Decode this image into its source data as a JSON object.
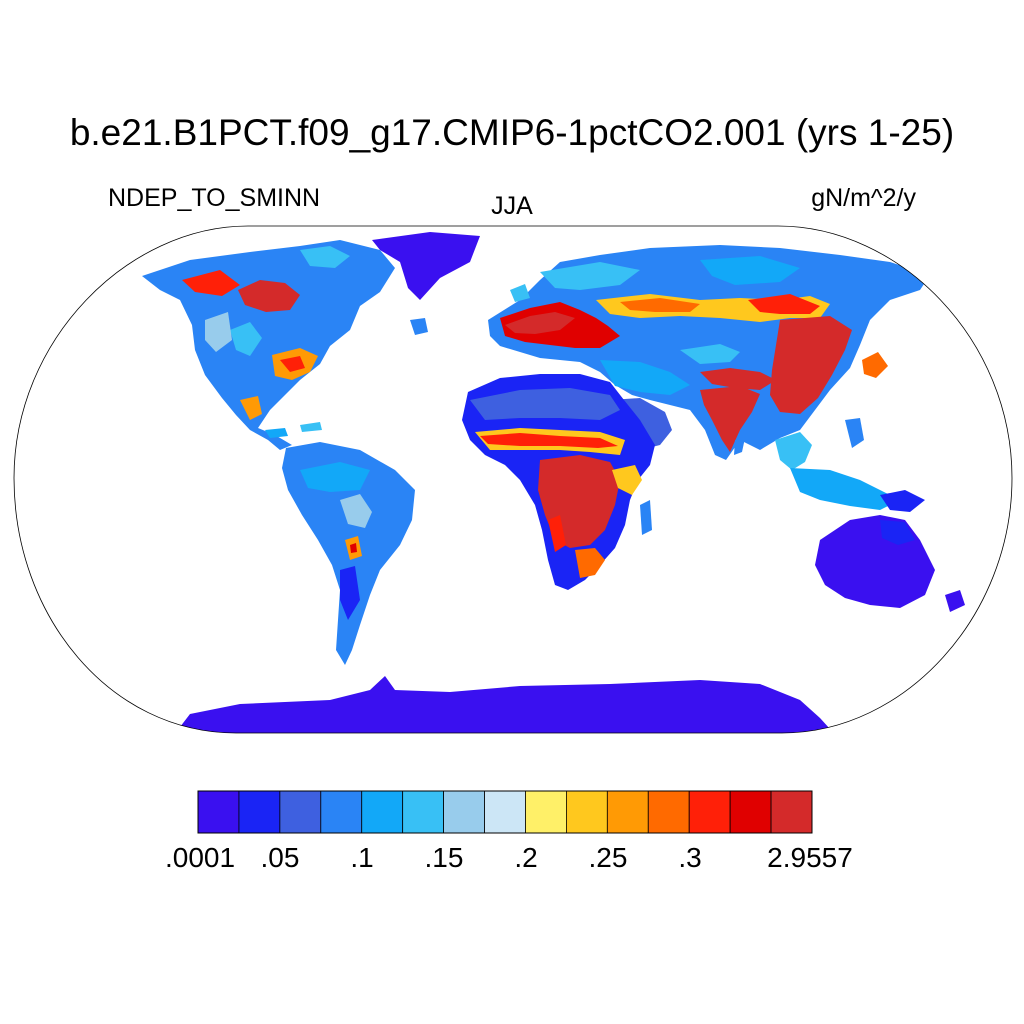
{
  "title": "b.e21.B1PCT.f09_g17.CMIP6-1pctCO2.001 (yrs 1-25)",
  "left_subtitle": "NDEP_TO_SMINN",
  "center_subtitle": "JJA",
  "right_subtitle": "gN/m^2/y",
  "colorbar": {
    "colors": [
      "#3a10f0",
      "#1a24f5",
      "#3e60e0",
      "#2a84f5",
      "#12a8f8",
      "#38c0f5",
      "#98ccec",
      "#cce6f6",
      "#fff068",
      "#ffc81e",
      "#ff9a05",
      "#ff6a00",
      "#ff2008",
      "#e00000",
      "#d42a2a"
    ],
    "labels": [
      ".0001",
      ".05",
      ".1",
      ".15",
      ".2",
      ".25",
      ".3",
      "2.9557"
    ]
  },
  "legend_colors": {
    "low": "#3a10f0",
    "mid": "#38c0f5",
    "high": "#d42a2a"
  }
}
